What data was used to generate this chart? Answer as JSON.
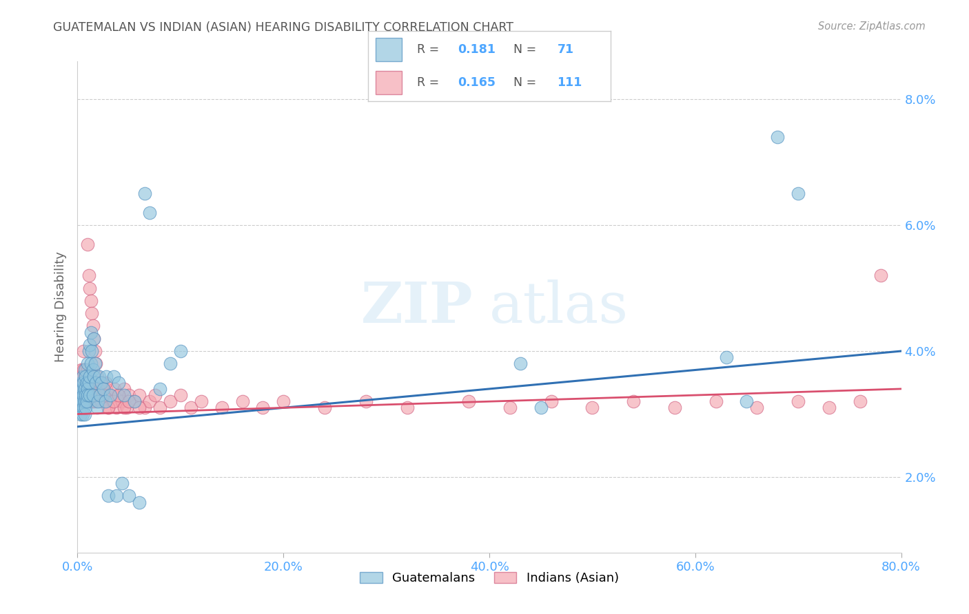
{
  "title": "GUATEMALAN VS INDIAN (ASIAN) HEARING DISABILITY CORRELATION CHART",
  "source": "Source: ZipAtlas.com",
  "ylabel": "Hearing Disability",
  "xlim": [
    0.0,
    0.8
  ],
  "ylim": [
    0.008,
    0.086
  ],
  "y_ticks": [
    0.02,
    0.04,
    0.06,
    0.08
  ],
  "y_tick_labels": [
    "2.0%",
    "4.0%",
    "6.0%",
    "8.0%"
  ],
  "x_ticks": [
    0.0,
    0.2,
    0.4,
    0.6,
    0.8
  ],
  "x_tick_labels": [
    "0.0%",
    "20.0%",
    "40.0%",
    "60.0%",
    "80.0%"
  ],
  "legend_blue_R": "0.181",
  "legend_blue_N": "71",
  "legend_pink_R": "0.165",
  "legend_pink_N": "111",
  "blue_scatter_color": "#92c5de",
  "pink_scatter_color": "#f4a6b0",
  "line_blue_color": "#3070b3",
  "line_pink_color": "#d94f6e",
  "watermark": "ZIPatlas",
  "background_color": "#ffffff",
  "grid_color": "#cccccc",
  "title_color": "#555555",
  "axis_tick_color": "#4da6ff",
  "source_color": "#999999",
  "ylabel_color": "#666666",
  "guat_x": [
    0.001,
    0.002,
    0.002,
    0.003,
    0.003,
    0.003,
    0.004,
    0.004,
    0.004,
    0.005,
    0.005,
    0.005,
    0.005,
    0.006,
    0.006,
    0.006,
    0.007,
    0.007,
    0.007,
    0.007,
    0.008,
    0.008,
    0.008,
    0.009,
    0.009,
    0.01,
    0.01,
    0.01,
    0.011,
    0.011,
    0.012,
    0.012,
    0.012,
    0.013,
    0.013,
    0.014,
    0.015,
    0.015,
    0.016,
    0.016,
    0.017,
    0.018,
    0.019,
    0.02,
    0.021,
    0.022,
    0.023,
    0.025,
    0.027,
    0.028,
    0.03,
    0.032,
    0.035,
    0.038,
    0.04,
    0.043,
    0.045,
    0.05,
    0.055,
    0.06,
    0.065,
    0.07,
    0.08,
    0.09,
    0.1,
    0.43,
    0.45,
    0.63,
    0.65,
    0.68,
    0.7
  ],
  "guat_y": [
    0.032,
    0.031,
    0.034,
    0.032,
    0.033,
    0.03,
    0.033,
    0.031,
    0.035,
    0.032,
    0.034,
    0.03,
    0.036,
    0.033,
    0.031,
    0.035,
    0.032,
    0.034,
    0.03,
    0.037,
    0.033,
    0.031,
    0.036,
    0.032,
    0.035,
    0.034,
    0.033,
    0.038,
    0.035,
    0.04,
    0.036,
    0.033,
    0.041,
    0.038,
    0.043,
    0.04,
    0.037,
    0.033,
    0.036,
    0.042,
    0.038,
    0.035,
    0.031,
    0.032,
    0.036,
    0.033,
    0.035,
    0.034,
    0.032,
    0.036,
    0.017,
    0.033,
    0.036,
    0.017,
    0.035,
    0.019,
    0.033,
    0.017,
    0.032,
    0.016,
    0.065,
    0.062,
    0.034,
    0.038,
    0.04,
    0.038,
    0.031,
    0.039,
    0.032,
    0.074,
    0.065
  ],
  "ind_x": [
    0.001,
    0.001,
    0.002,
    0.002,
    0.003,
    0.003,
    0.003,
    0.004,
    0.004,
    0.004,
    0.005,
    0.005,
    0.005,
    0.006,
    0.006,
    0.006,
    0.006,
    0.007,
    0.007,
    0.007,
    0.008,
    0.008,
    0.008,
    0.009,
    0.009,
    0.009,
    0.01,
    0.01,
    0.01,
    0.011,
    0.011,
    0.012,
    0.012,
    0.013,
    0.013,
    0.014,
    0.014,
    0.015,
    0.015,
    0.016,
    0.016,
    0.017,
    0.018,
    0.019,
    0.02,
    0.021,
    0.022,
    0.023,
    0.024,
    0.025,
    0.027,
    0.028,
    0.03,
    0.032,
    0.034,
    0.036,
    0.038,
    0.04,
    0.043,
    0.045,
    0.048,
    0.05,
    0.055,
    0.06,
    0.065,
    0.07,
    0.075,
    0.08,
    0.09,
    0.1,
    0.11,
    0.12,
    0.14,
    0.16,
    0.18,
    0.2,
    0.24,
    0.28,
    0.32,
    0.38,
    0.42,
    0.46,
    0.5,
    0.54,
    0.58,
    0.62,
    0.66,
    0.7,
    0.73,
    0.76,
    0.01,
    0.011,
    0.012,
    0.013,
    0.014,
    0.015,
    0.016,
    0.017,
    0.018,
    0.019,
    0.02,
    0.022,
    0.025,
    0.027,
    0.03,
    0.035,
    0.04,
    0.045,
    0.05,
    0.06,
    0.78
  ],
  "ind_y": [
    0.033,
    0.036,
    0.034,
    0.035,
    0.032,
    0.034,
    0.036,
    0.033,
    0.035,
    0.037,
    0.032,
    0.034,
    0.036,
    0.033,
    0.035,
    0.037,
    0.04,
    0.032,
    0.034,
    0.036,
    0.033,
    0.035,
    0.037,
    0.032,
    0.034,
    0.036,
    0.033,
    0.035,
    0.037,
    0.034,
    0.036,
    0.033,
    0.035,
    0.032,
    0.034,
    0.033,
    0.035,
    0.032,
    0.034,
    0.033,
    0.035,
    0.032,
    0.034,
    0.033,
    0.034,
    0.033,
    0.035,
    0.032,
    0.034,
    0.033,
    0.032,
    0.034,
    0.031,
    0.033,
    0.032,
    0.034,
    0.031,
    0.033,
    0.032,
    0.034,
    0.031,
    0.033,
    0.032,
    0.033,
    0.031,
    0.032,
    0.033,
    0.031,
    0.032,
    0.033,
    0.031,
    0.032,
    0.031,
    0.032,
    0.031,
    0.032,
    0.031,
    0.032,
    0.031,
    0.032,
    0.031,
    0.032,
    0.031,
    0.032,
    0.031,
    0.032,
    0.031,
    0.032,
    0.031,
    0.032,
    0.057,
    0.052,
    0.05,
    0.048,
    0.046,
    0.044,
    0.042,
    0.04,
    0.038,
    0.036,
    0.034,
    0.035,
    0.033,
    0.035,
    0.031,
    0.032,
    0.033,
    0.031,
    0.032,
    0.031,
    0.052
  ],
  "blue_line_x0": 0.0,
  "blue_line_y0": 0.028,
  "blue_line_x1": 0.8,
  "blue_line_y1": 0.04,
  "pink_line_x0": 0.0,
  "pink_line_y0": 0.03,
  "pink_line_x1": 0.8,
  "pink_line_y1": 0.034
}
